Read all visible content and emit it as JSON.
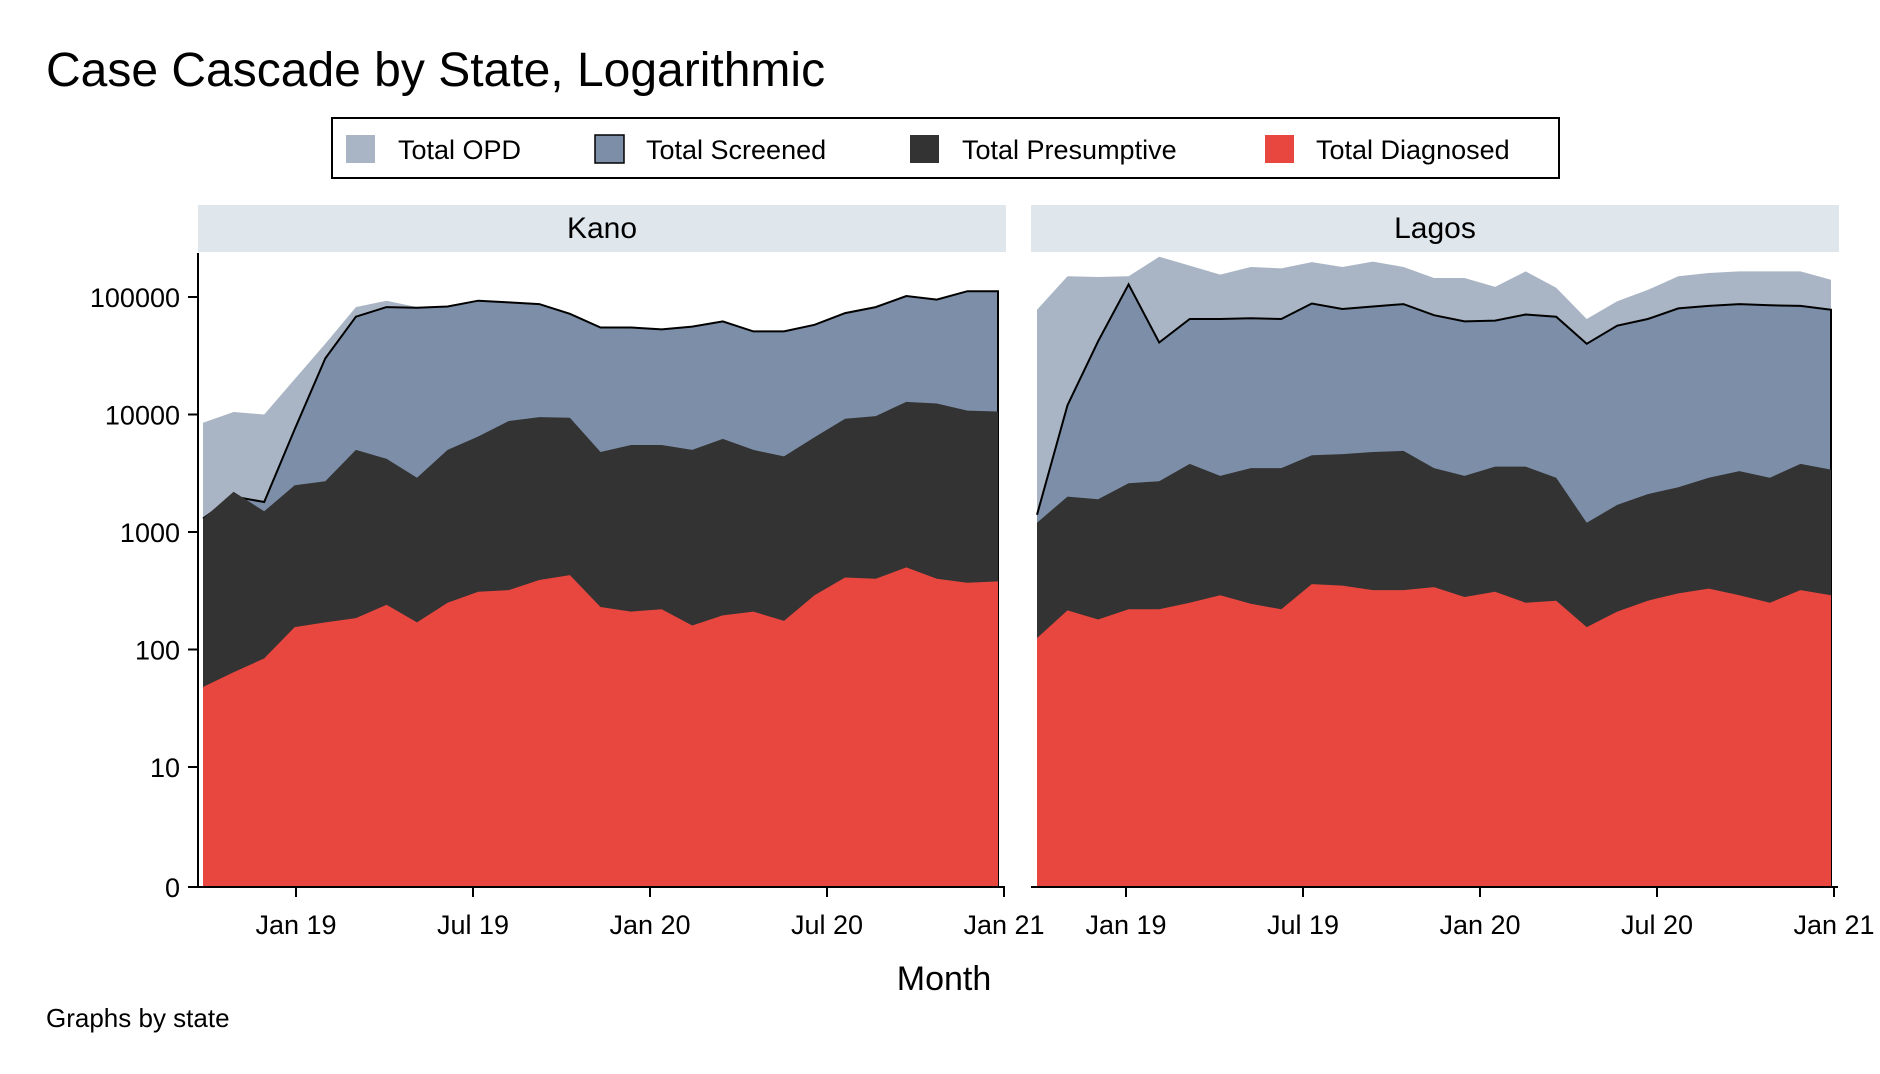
{
  "title": "Case Cascade by State, Logarithmic",
  "note": "Graphs by state",
  "legend": {
    "position": "top-center",
    "items": [
      {
        "label": "Total OPD",
        "color": "#a9b5c4",
        "outline": false
      },
      {
        "label": "Total Screened",
        "color": "#7d8fa8",
        "outline": true
      },
      {
        "label": "Total Presumptive",
        "color": "#333333",
        "outline": false
      },
      {
        "label": "Total Diagnosed",
        "color": "#e8473f",
        "outline": false
      }
    ]
  },
  "chart_data": {
    "type": "area",
    "scale": "log",
    "xlabel": "Month",
    "ylabel": "",
    "y_ticks": [
      "0",
      "10",
      "100",
      "1000",
      "10000",
      "100000"
    ],
    "x_ticks": [
      "Jan 19",
      "Jul 19",
      "Jan 20",
      "Jul 20",
      "Jan 21"
    ],
    "x": [
      "Oct 18",
      "Nov 18",
      "Dec 18",
      "Jan 19",
      "Feb 19",
      "Mar 19",
      "Apr 19",
      "May 19",
      "Jun 19",
      "Jul 19",
      "Aug 19",
      "Sep 19",
      "Oct 19",
      "Nov 19",
      "Dec 19",
      "Jan 20",
      "Feb 20",
      "Mar 20",
      "Apr 20",
      "May 20",
      "Jun 20",
      "Jul 20",
      "Aug 20",
      "Sep 20",
      "Oct 20",
      "Nov 20",
      "Dec 20"
    ],
    "panels": [
      {
        "name": "Kano",
        "series": [
          {
            "name": "Total OPD",
            "values": [
              8500,
              10500,
              10000,
              20000,
              40000,
              82000,
              93000,
              82000,
              83000,
              90000,
              78000,
              86000,
              70000,
              45000,
              52000,
              51000,
              40000,
              53000,
              40000,
              39000,
              47000,
              58000,
              66000,
              72000,
              72000,
              80000,
              76000
            ]
          },
          {
            "name": "Total Screened",
            "values": [
              1300,
              2000,
              1800,
              7500,
              30000,
              68000,
              82000,
              81000,
              83000,
              93000,
              90000,
              87000,
              72000,
              55000,
              55000,
              53000,
              56000,
              62000,
              51000,
              51000,
              58000,
              73000,
              82000,
              102000,
              95000,
              112000,
              112000
            ]
          },
          {
            "name": "Total Presumptive",
            "values": [
              1300,
              2200,
              1500,
              2500,
              2700,
              5000,
              4200,
              2900,
              5000,
              6500,
              8800,
              9500,
              9400,
              4800,
              5500,
              5500,
              5000,
              6200,
              5000,
              4400,
              6400,
              9200,
              9700,
              12800,
              12400,
              10800,
              10600
            ]
          },
          {
            "name": "Total Diagnosed",
            "values": [
              48,
              64,
              84,
              155,
              170,
              185,
              240,
              170,
              250,
              310,
              320,
              390,
              430,
              230,
              210,
              220,
              160,
              195,
              210,
              175,
              290,
              410,
              400,
              500,
              400,
              370,
              380
            ]
          }
        ]
      },
      {
        "name": "Lagos",
        "series": [
          {
            "name": "Total OPD",
            "values": [
              78000,
              150000,
              148000,
              150000,
              220000,
              185000,
              155000,
              180000,
              175000,
              198000,
              180000,
              200000,
              180000,
              145000,
              145000,
              122000,
              165000,
              120000,
              65000,
              92000,
              115000,
              150000,
              160000,
              165000,
              165000,
              165000,
              140000
            ]
          },
          {
            "name": "Total Screened",
            "values": [
              1400,
              12000,
              42000,
              128000,
              41000,
              65000,
              65000,
              66000,
              65000,
              88000,
              79000,
              83000,
              87000,
              70000,
              62000,
              63000,
              71000,
              68000,
              40000,
              57000,
              65000,
              80000,
              84000,
              87000,
              85000,
              84000,
              78000
            ]
          },
          {
            "name": "Total Presumptive",
            "values": [
              1200,
              2000,
              1900,
              2600,
              2700,
              3800,
              3000,
              3500,
              3500,
              4500,
              4600,
              4800,
              4900,
              3500,
              3000,
              3600,
              3600,
              2900,
              1200,
              1700,
              2100,
              2400,
              2900,
              3300,
              2900,
              3800,
              3400
            ]
          },
          {
            "name": "Total Diagnosed",
            "values": [
              125,
              215,
              180,
              220,
              220,
              250,
              290,
              245,
              220,
              360,
              350,
              320,
              320,
              340,
              280,
              310,
              250,
              260,
              155,
              210,
              260,
              300,
              330,
              290,
              250,
              320,
              290
            ]
          }
        ]
      }
    ]
  }
}
